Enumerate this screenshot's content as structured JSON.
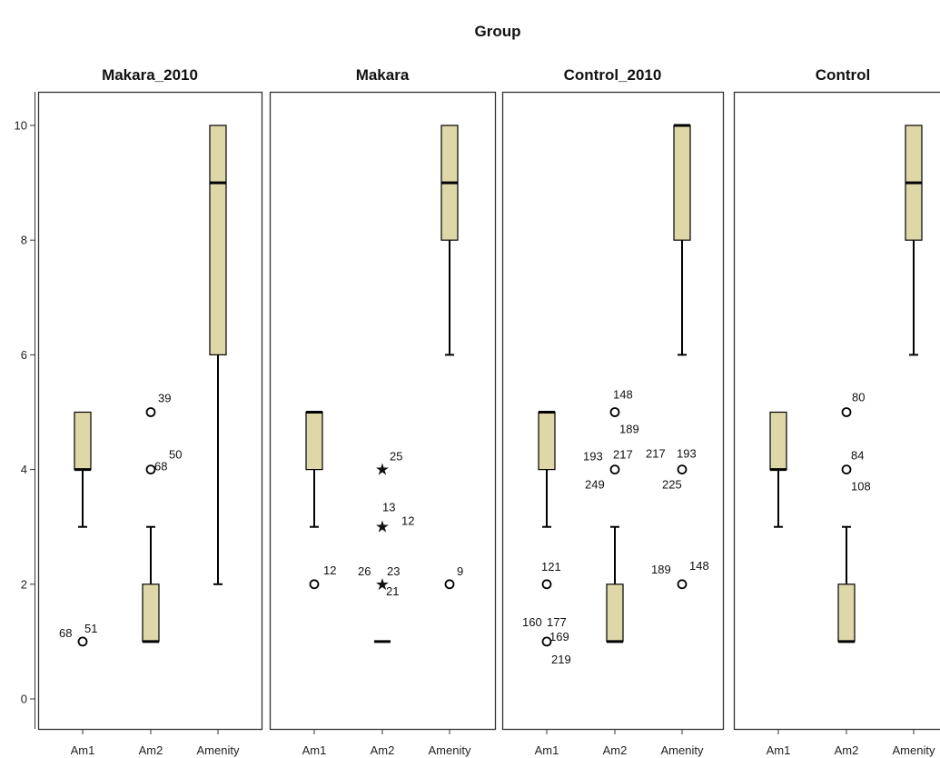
{
  "chart_data": {
    "type": "boxplot",
    "title": "Group",
    "ylim": [
      0,
      10
    ],
    "yticks": [
      "0",
      "2",
      "4",
      "6",
      "8",
      "10"
    ],
    "categories": [
      "Am1",
      "Am2",
      "Amenity"
    ],
    "colors": {
      "box": "#ded8a8",
      "stroke": "#000000",
      "frame": "#333333"
    },
    "panels": [
      {
        "name": "Makara_2010",
        "boxes": [
          {
            "category": "Am1",
            "whisker_low": 3,
            "q1": 4,
            "median": 4,
            "q3": 5,
            "whisker_high": 5,
            "outliers": [
              {
                "y": 1,
                "marker": "circle",
                "labels": [
                  "68",
                  "51"
                ]
              }
            ]
          },
          {
            "category": "Am2",
            "whisker_low": 1,
            "q1": 1,
            "median": 1,
            "q3": 2,
            "whisker_high": 3,
            "outliers": [
              {
                "y": 5,
                "marker": "circle",
                "labels": [
                  "39"
                ]
              },
              {
                "y": 4,
                "marker": "circle",
                "labels": [
                  "68",
                  "50"
                ]
              }
            ]
          },
          {
            "category": "Amenity",
            "whisker_low": 2,
            "q1": 6,
            "median": 9,
            "q3": 10,
            "whisker_high": 10,
            "outliers": []
          }
        ]
      },
      {
        "name": "Makara",
        "boxes": [
          {
            "category": "Am1",
            "whisker_low": 3,
            "q1": 4,
            "median": 5,
            "q3": 5,
            "whisker_high": 5,
            "outliers": [
              {
                "y": 2,
                "marker": "circle",
                "labels": [
                  "12"
                ]
              }
            ]
          },
          {
            "category": "Am2",
            "whisker_low": 1,
            "q1": 1,
            "median": 1,
            "q3": 1,
            "whisker_high": 1,
            "outliers": [
              {
                "y": 4,
                "marker": "star",
                "labels": [
                  "25"
                ]
              },
              {
                "y": 3,
                "marker": "star",
                "labels": [
                  "13",
                  "12"
                ]
              },
              {
                "y": 2,
                "marker": "star",
                "labels": [
                  "26",
                  "23",
                  "21"
                ]
              }
            ]
          },
          {
            "category": "Amenity",
            "whisker_low": 6,
            "q1": 8,
            "median": 9,
            "q3": 10,
            "whisker_high": 10,
            "outliers": [
              {
                "y": 2,
                "marker": "circle",
                "labels": [
                  "9"
                ]
              }
            ]
          }
        ]
      },
      {
        "name": "Control_2010",
        "boxes": [
          {
            "category": "Am1",
            "whisker_low": 3,
            "q1": 4,
            "median": 5,
            "q3": 5,
            "whisker_high": 5,
            "outliers": [
              {
                "y": 2,
                "marker": "circle",
                "labels": [
                  "121"
                ]
              },
              {
                "y": 1,
                "marker": "circle",
                "labels": [
                  "160",
                  "177",
                  "169",
                  "219"
                ]
              }
            ]
          },
          {
            "category": "Am2",
            "whisker_low": 1,
            "q1": 1,
            "median": 1,
            "q3": 2,
            "whisker_high": 3,
            "outliers": [
              {
                "y": 5,
                "marker": "circle",
                "labels": [
                  "148",
                  "189"
                ]
              },
              {
                "y": 4,
                "marker": "circle",
                "labels": [
                  "193",
                  "217",
                  "249"
                ]
              }
            ]
          },
          {
            "category": "Amenity",
            "whisker_low": 6,
            "q1": 8,
            "median": 10,
            "q3": 10,
            "whisker_high": 10,
            "outliers": [
              {
                "y": 4,
                "marker": "circle",
                "labels": [
                  "217",
                  "193",
                  "225"
                ]
              },
              {
                "y": 2,
                "marker": "circle",
                "labels": [
                  "189",
                  "148"
                ]
              }
            ]
          }
        ]
      },
      {
        "name": "Control",
        "boxes": [
          {
            "category": "Am1",
            "whisker_low": 3,
            "q1": 4,
            "median": 4,
            "q3": 5,
            "whisker_high": 5,
            "outliers": []
          },
          {
            "category": "Am2",
            "whisker_low": 1,
            "q1": 1,
            "median": 1,
            "q3": 2,
            "whisker_high": 3,
            "outliers": [
              {
                "y": 5,
                "marker": "circle",
                "labels": [
                  "80"
                ]
              },
              {
                "y": 4,
                "marker": "circle",
                "labels": [
                  "84",
                  "108"
                ]
              }
            ]
          },
          {
            "category": "Amenity",
            "whisker_low": 6,
            "q1": 8,
            "median": 9,
            "q3": 10,
            "whisker_high": 10,
            "outliers": []
          }
        ]
      }
    ]
  }
}
